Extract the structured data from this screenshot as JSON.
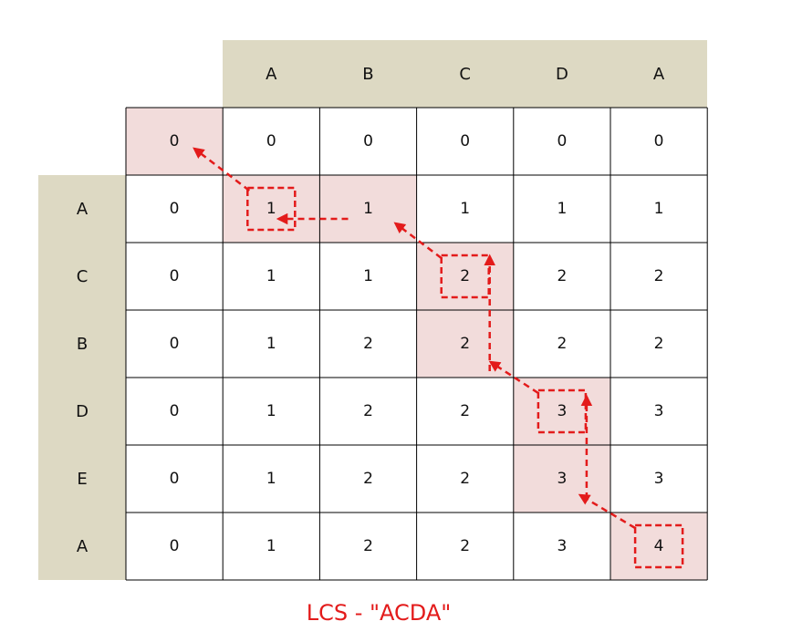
{
  "columns": [
    "A",
    "B",
    "C",
    "D",
    "A"
  ],
  "rows": [
    "A",
    "C",
    "B",
    "D",
    "E",
    "A"
  ],
  "top_row": [
    "0",
    "0",
    "0",
    "0",
    "0",
    "0"
  ],
  "matrix": [
    [
      "0",
      "1",
      "1",
      "1",
      "1",
      "1"
    ],
    [
      "0",
      "1",
      "1",
      "2",
      "2",
      "2"
    ],
    [
      "0",
      "1",
      "2",
      "2",
      "2",
      "2"
    ],
    [
      "0",
      "1",
      "2",
      "2",
      "3",
      "3"
    ],
    [
      "0",
      "1",
      "2",
      "2",
      "3",
      "3"
    ],
    [
      "0",
      "1",
      "2",
      "2",
      "3",
      "4"
    ]
  ],
  "highlighted_cells": [
    [
      0,
      0
    ],
    [
      1,
      1
    ],
    [
      1,
      2
    ],
    [
      2,
      3
    ],
    [
      3,
      3
    ],
    [
      4,
      4
    ],
    [
      5,
      4
    ],
    [
      6,
      5
    ]
  ],
  "boxed_cells": [
    [
      1,
      1
    ],
    [
      2,
      3
    ],
    [
      4,
      4
    ],
    [
      6,
      5
    ]
  ],
  "path_color": "#e31b1b",
  "highlight_color": "#f2dcdb",
  "header_color": "#ddd9c3",
  "caption": "LCS - \"ACDA\""
}
